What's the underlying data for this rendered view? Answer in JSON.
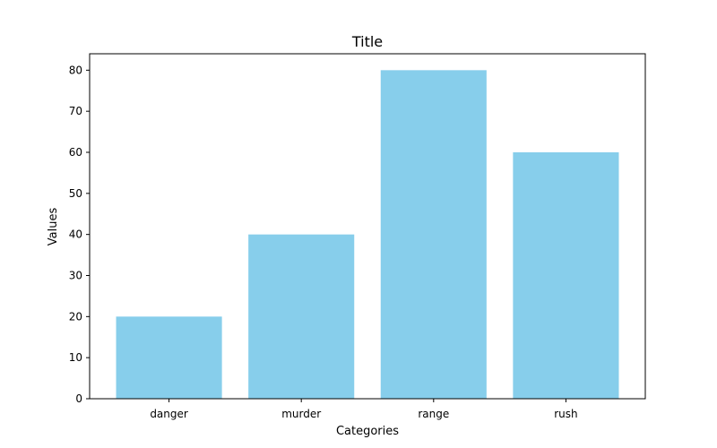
{
  "chart_data": {
    "type": "bar",
    "title": "Title",
    "xlabel": "Categories",
    "ylabel": "Values",
    "categories": [
      "danger",
      "murder",
      "range",
      "rush"
    ],
    "values": [
      20,
      40,
      80,
      60
    ],
    "ylim": [
      0,
      84
    ],
    "yticks": [
      0,
      10,
      20,
      30,
      40,
      50,
      60,
      70,
      80
    ],
    "grid": false,
    "bar_color": "#87CEEB",
    "axis_color": "#000000"
  }
}
